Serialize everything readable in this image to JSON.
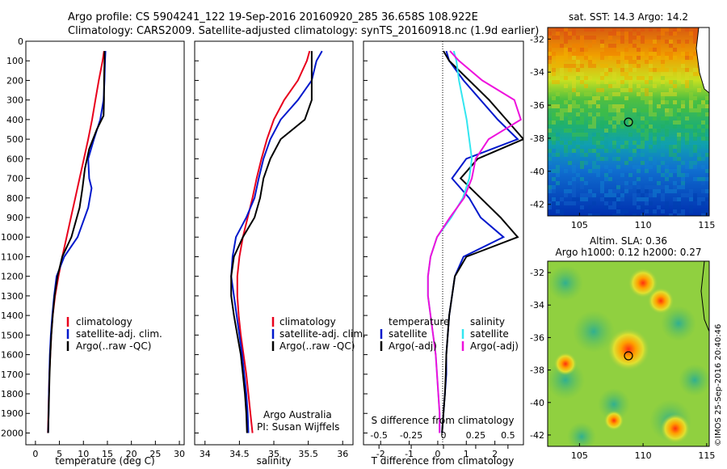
{
  "header": {
    "line1": "Argo profile: CS 5904241_122 19-Sep-2016 20160920_285 36.658S 108.922E",
    "line2": "Climatology: CARS2009. Satellite-adjusted climatology: synTS_20160918.nc (1.9d earlier)"
  },
  "colors": {
    "climatology": "#e8001c",
    "satellite": "#0018cc",
    "argo": "#000000",
    "satellite_s": "#33e6f0",
    "argo_s": "#ee11dd"
  },
  "panels": {
    "temperature": {
      "xlabel": "temperature (deg C)",
      "xticks": [
        "0",
        "5",
        "10",
        "15",
        "20",
        "25",
        "30"
      ]
    },
    "salinity": {
      "xlabel": "salinity",
      "xticks": [
        "34",
        "34.5",
        "35",
        "35.5",
        "36"
      ]
    },
    "difference": {
      "xlabel": "T difference from climatology",
      "xticks": [
        "-2",
        "-1",
        "0",
        "1",
        "2"
      ],
      "s_label": "S difference from climatology",
      "s_ticks": [
        "-0.5",
        "-0.25",
        "0",
        "0.25",
        "0.5"
      ],
      "legend_t_title": "temperature",
      "legend_s_title": "salinity",
      "legend_sat": "satellite",
      "legend_argo": "Argo(-adj)"
    }
  },
  "depth_ticks": [
    "0",
    "100",
    "200",
    "300",
    "400",
    "500",
    "600",
    "700",
    "800",
    "900",
    "1000",
    "1100",
    "1200",
    "1300",
    "1400",
    "1500",
    "1600",
    "1700",
    "1800",
    "1900",
    "2000"
  ],
  "legend": {
    "climatology": "climatology",
    "satellite": "satellite-adj. clim.",
    "argo": "Argo(..raw -QC)"
  },
  "credit": {
    "line1": "Argo Australia",
    "line2": "PI: Susan Wijffels"
  },
  "maps": {
    "sst": {
      "title": "sat. SST: 14.3 Argo: 14.2",
      "yticks": [
        "-32",
        "-34",
        "-36",
        "-38",
        "-40",
        "-42"
      ],
      "xticks": [
        "105",
        "110",
        "115"
      ]
    },
    "sla": {
      "title1": "Altim. SLA: 0.36",
      "title2": "Argo h1000: 0.12 h2000: 0.27",
      "yticks": [
        "-32",
        "-34",
        "-36",
        "-38",
        "-40",
        "-42"
      ],
      "xticks": [
        "105",
        "110",
        "115"
      ]
    }
  },
  "stamp": "©IMOS 25-Sep-2016 20:40:46",
  "chart_data": [
    {
      "type": "line",
      "title": "",
      "xlabel": "temperature (deg C)",
      "ylabel": "",
      "xlim": [
        -2,
        31
      ],
      "ylim": [
        2060,
        0
      ],
      "series": [
        {
          "name": "climatology",
          "color": "#e8001c",
          "x": [
            14.3,
            14.0,
            13.2,
            12.5,
            11.8,
            11.0,
            10.1,
            9.2,
            8.3,
            7.4,
            6.5,
            5.6,
            4.8,
            4.1,
            3.6,
            3.3,
            3.1,
            2.9,
            2.8,
            2.7,
            2.6
          ],
          "y": [
            50,
            100,
            200,
            300,
            400,
            500,
            600,
            700,
            800,
            900,
            1000,
            1100,
            1200,
            1300,
            1400,
            1500,
            1600,
            1700,
            1800,
            1900,
            2000
          ]
        },
        {
          "name": "satellite-adj. clim.",
          "color": "#0018cc",
          "x": [
            14.6,
            14.5,
            14.4,
            14.2,
            13.5,
            12.2,
            11.0,
            11.2,
            11.7,
            11.0,
            8.8,
            6.0,
            4.4,
            3.9,
            3.5,
            3.2,
            3.0,
            2.9,
            2.8,
            2.75,
            2.65
          ],
          "y": [
            50,
            100,
            200,
            300,
            400,
            500,
            600,
            700,
            750,
            850,
            1000,
            1100,
            1200,
            1300,
            1400,
            1500,
            1600,
            1700,
            1800,
            1900,
            2000
          ]
        },
        {
          "name": "Argo(..raw -QC)",
          "color": "#000000",
          "x": [
            14.4,
            14.4,
            14.3,
            14.3,
            14.2,
            12.8,
            11.2,
            10.3,
            9.8,
            9.2,
            7.5,
            5.6,
            4.6,
            4.0,
            3.6,
            3.3,
            3.1,
            2.95,
            2.85,
            2.75,
            2.65
          ],
          "y": [
            50,
            100,
            200,
            300,
            380,
            450,
            550,
            650,
            750,
            850,
            1000,
            1100,
            1200,
            1300,
            1400,
            1500,
            1600,
            1700,
            1800,
            1900,
            2000
          ]
        }
      ]
    },
    {
      "type": "line",
      "title": "",
      "xlabel": "salinity",
      "ylabel": "",
      "xlim": [
        33.85,
        36.15
      ],
      "ylim": [
        2060,
        0
      ],
      "series": [
        {
          "name": "climatology",
          "color": "#e8001c",
          "x": [
            35.52,
            35.48,
            35.35,
            35.15,
            35.0,
            34.9,
            34.82,
            34.75,
            34.69,
            34.62,
            34.55,
            34.5,
            34.47,
            34.47,
            34.49,
            34.52,
            34.56,
            34.6,
            34.63,
            34.66,
            34.69
          ],
          "y": [
            50,
            100,
            200,
            300,
            400,
            500,
            600,
            700,
            800,
            900,
            1000,
            1100,
            1200,
            1300,
            1400,
            1500,
            1600,
            1700,
            1800,
            1900,
            2000
          ]
        },
        {
          "name": "satellite-adj. clim.",
          "color": "#0018cc",
          "x": [
            35.7,
            35.62,
            35.55,
            35.35,
            35.1,
            34.95,
            34.85,
            34.78,
            34.72,
            34.6,
            34.45,
            34.4,
            34.38,
            34.42,
            34.46,
            34.5,
            34.54,
            34.57,
            34.6,
            34.62,
            34.63
          ],
          "y": [
            50,
            100,
            200,
            300,
            400,
            500,
            600,
            700,
            800,
            900,
            1000,
            1100,
            1200,
            1300,
            1400,
            1500,
            1600,
            1700,
            1800,
            1900,
            2000
          ]
        },
        {
          "name": "Argo(..raw -QC)",
          "color": "#000000",
          "x": [
            35.55,
            35.55,
            35.55,
            35.55,
            35.45,
            35.1,
            34.95,
            34.85,
            34.8,
            34.72,
            34.55,
            34.42,
            34.38,
            34.38,
            34.42,
            34.47,
            34.52,
            34.55,
            34.58,
            34.6,
            34.61
          ],
          "y": [
            50,
            100,
            200,
            300,
            400,
            500,
            600,
            700,
            800,
            900,
            1000,
            1100,
            1200,
            1300,
            1400,
            1500,
            1600,
            1700,
            1800,
            1900,
            2000
          ]
        }
      ]
    },
    {
      "type": "line",
      "title": "",
      "xlabel": "T difference from climatology",
      "ylabel": "",
      "xlim": [
        -2.6,
        3.0
      ],
      "ylim": [
        2060,
        0
      ],
      "series": [
        {
          "name": "temperature satellite",
          "color": "#0018cc",
          "x": [
            0.3,
            0.4,
            0.9,
            1.5,
            2.1,
            2.8,
            1.0,
            0.5,
            1.1,
            1.5,
            2.3,
            0.9,
            0.6,
            0.5,
            0.4,
            0.35,
            0.3,
            0.3,
            0.25,
            0.2,
            0.15
          ],
          "y": [
            50,
            100,
            200,
            300,
            400,
            500,
            600,
            700,
            800,
            900,
            1000,
            1100,
            1200,
            1300,
            1400,
            1500,
            1600,
            1700,
            1800,
            1900,
            2000
          ]
        },
        {
          "name": "temperature Argo(-adj)",
          "color": "#000000",
          "x": [
            0.2,
            0.4,
            1.1,
            1.8,
            2.4,
            3.0,
            1.4,
            0.8,
            1.5,
            2.2,
            2.8,
            1.0,
            0.6,
            0.5,
            0.4,
            0.35,
            0.3,
            0.28,
            0.25,
            0.2,
            0.15
          ],
          "y": [
            50,
            100,
            200,
            300,
            400,
            500,
            600,
            700,
            800,
            900,
            1000,
            1100,
            1200,
            1300,
            1400,
            1500,
            1600,
            1700,
            1800,
            1900,
            2000
          ]
        }
      ]
    },
    {
      "type": "line",
      "title": "",
      "xlabel": "S difference from climatology",
      "ylabel": "",
      "xlim": [
        -0.62,
        0.62
      ],
      "ylim": [
        2060,
        0
      ],
      "series": [
        {
          "name": "salinity satellite",
          "color": "#33e6f0",
          "x": [
            0.08,
            0.1,
            0.12,
            0.15,
            0.18,
            0.2,
            0.22,
            0.2,
            0.15,
            0.06,
            -0.05,
            -0.1,
            -0.12,
            -0.12,
            -0.1,
            -0.08,
            -0.06,
            -0.05,
            -0.04,
            -0.03,
            -0.03
          ],
          "y": [
            50,
            100,
            200,
            300,
            400,
            500,
            600,
            700,
            800,
            900,
            1000,
            1100,
            1200,
            1300,
            1400,
            1500,
            1600,
            1700,
            1800,
            1900,
            2000
          ]
        },
        {
          "name": "salinity Argo(-adj)",
          "color": "#ee11dd",
          "x": [
            0.05,
            0.12,
            0.3,
            0.55,
            0.6,
            0.35,
            0.25,
            0.22,
            0.16,
            0.05,
            -0.05,
            -0.1,
            -0.12,
            -0.12,
            -0.1,
            -0.08,
            -0.06,
            -0.05,
            -0.04,
            -0.03,
            -0.03
          ],
          "y": [
            50,
            100,
            200,
            300,
            400,
            500,
            600,
            700,
            800,
            900,
            1000,
            1100,
            1200,
            1300,
            1400,
            1500,
            1600,
            1700,
            1800,
            1900,
            2000
          ]
        }
      ]
    },
    {
      "type": "heatmap",
      "title": "sat. SST: 14.3 Argo: 14.2",
      "xlim": [
        102.5,
        115.2
      ],
      "ylim": [
        -42.7,
        -31.3
      ],
      "marker": {
        "lon": 108.922,
        "lat": -36.658
      }
    },
    {
      "type": "heatmap",
      "title": "Altim. SLA: 0.36",
      "xlim": [
        102.5,
        115.2
      ],
      "ylim": [
        -42.7,
        -31.3
      ],
      "marker": {
        "lon": 108.922,
        "lat": -36.658
      }
    }
  ]
}
